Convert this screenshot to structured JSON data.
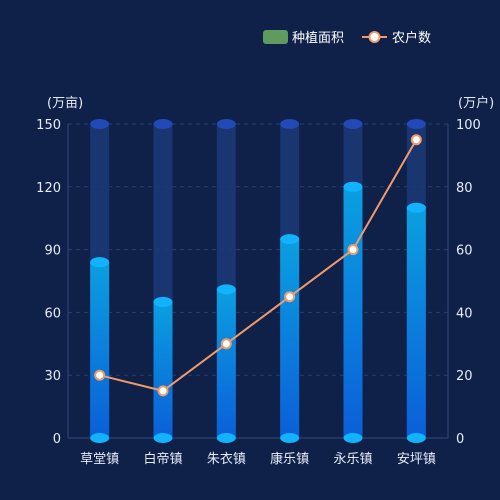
{
  "chart_data": {
    "type": "bar",
    "categories": [
      "草堂镇",
      "白帝镇",
      "朱衣镇",
      "康乐镇",
      "永乐镇",
      "安坪镇"
    ],
    "series": [
      {
        "name": "种植面积",
        "type": "bar",
        "axis": "left",
        "values": [
          84,
          65,
          71,
          95,
          120,
          110
        ]
      },
      {
        "name": "农户数",
        "type": "line",
        "axis": "right",
        "values": [
          20,
          15,
          30,
          45,
          60,
          95
        ]
      }
    ],
    "y_left": {
      "unit": "(万亩)",
      "min": 0,
      "max": 150,
      "ticks": [
        "0",
        "30",
        "60",
        "90",
        "120",
        "150"
      ]
    },
    "y_right": {
      "unit": "(万户)",
      "min": 0,
      "max": 100,
      "ticks": [
        "0",
        "20",
        "40",
        "60",
        "80",
        "100"
      ]
    },
    "legend_position": "top-right",
    "grid": true
  },
  "colors": {
    "background": "#0f2149",
    "bar_top": "#0b9fe0",
    "bar_bottom": "#0b5fd8",
    "bar_cap": "#11b3ff",
    "bar_track": "#1b3a78",
    "track_cap": "#2249b8",
    "line": "#f39a6a",
    "marker_fill": "#ffffff",
    "legend_bar": "#5f9a5f",
    "grid": "#2a3f6e",
    "text": "#e6ecf7"
  }
}
